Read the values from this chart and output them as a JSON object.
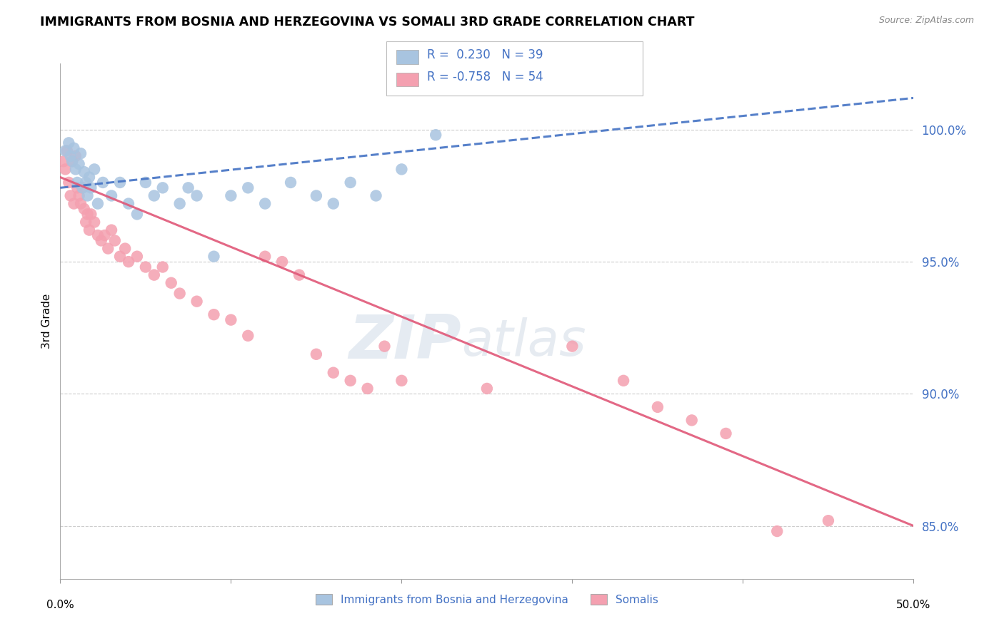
{
  "title": "IMMIGRANTS FROM BOSNIA AND HERZEGOVINA VS SOMALI 3RD GRADE CORRELATION CHART",
  "source": "Source: ZipAtlas.com",
  "ylabel": "3rd Grade",
  "y_ticks": [
    85.0,
    90.0,
    95.0,
    100.0
  ],
  "y_tick_labels": [
    "85.0%",
    "90.0%",
    "95.0%",
    "100.0%"
  ],
  "xlim": [
    0.0,
    50.0
  ],
  "ylim": [
    83.0,
    102.5
  ],
  "legend_bosnia_r": "0.230",
  "legend_bosnia_n": "39",
  "legend_somali_r": "-0.758",
  "legend_somali_n": "54",
  "bosnia_color": "#a8c4e0",
  "somali_color": "#f4a0b0",
  "bosnia_line_color": "#4472c4",
  "somali_line_color": "#e05878",
  "watermark_zip": "ZIP",
  "watermark_atlas": "atlas",
  "bosnia_x": [
    0.3,
    0.5,
    0.6,
    0.7,
    0.8,
    0.9,
    1.0,
    1.1,
    1.2,
    1.3,
    1.4,
    1.5,
    1.6,
    1.7,
    1.8,
    2.0,
    2.2,
    2.5,
    3.0,
    3.5,
    4.0,
    4.5,
    5.0,
    5.5,
    6.0,
    7.0,
    7.5,
    8.0,
    9.0,
    10.0,
    11.0,
    12.0,
    13.5,
    15.0,
    16.0,
    17.0,
    18.5,
    20.0,
    22.0
  ],
  "bosnia_y": [
    99.2,
    99.5,
    99.0,
    98.8,
    99.3,
    98.5,
    98.0,
    98.7,
    99.1,
    97.8,
    98.4,
    98.0,
    97.5,
    98.2,
    97.8,
    98.5,
    97.2,
    98.0,
    97.5,
    98.0,
    97.2,
    96.8,
    98.0,
    97.5,
    97.8,
    97.2,
    97.8,
    97.5,
    95.2,
    97.5,
    97.8,
    97.2,
    98.0,
    97.5,
    97.2,
    98.0,
    97.5,
    98.5,
    99.8
  ],
  "somali_x": [
    0.2,
    0.3,
    0.4,
    0.5,
    0.6,
    0.7,
    0.8,
    0.9,
    1.0,
    1.1,
    1.2,
    1.3,
    1.4,
    1.5,
    1.6,
    1.7,
    1.8,
    2.0,
    2.2,
    2.4,
    2.6,
    2.8,
    3.0,
    3.2,
    3.5,
    3.8,
    4.0,
    4.5,
    5.0,
    5.5,
    6.0,
    6.5,
    7.0,
    8.0,
    9.0,
    10.0,
    11.0,
    12.0,
    13.0,
    14.0,
    15.0,
    16.0,
    17.0,
    18.0,
    19.0,
    20.0,
    25.0,
    30.0,
    33.0,
    35.0,
    37.0,
    39.0,
    42.0,
    45.0
  ],
  "somali_y": [
    98.8,
    98.5,
    99.2,
    98.0,
    97.5,
    98.8,
    97.2,
    99.0,
    97.8,
    97.5,
    97.2,
    97.8,
    97.0,
    96.5,
    96.8,
    96.2,
    96.8,
    96.5,
    96.0,
    95.8,
    96.0,
    95.5,
    96.2,
    95.8,
    95.2,
    95.5,
    95.0,
    95.2,
    94.8,
    94.5,
    94.8,
    94.2,
    93.8,
    93.5,
    93.0,
    92.8,
    92.2,
    95.2,
    95.0,
    94.5,
    91.5,
    90.8,
    90.5,
    90.2,
    91.8,
    90.5,
    90.2,
    91.8,
    90.5,
    89.5,
    89.0,
    88.5,
    84.8,
    85.2
  ],
  "bosnia_line_x": [
    0,
    50
  ],
  "bosnia_line_y": [
    97.8,
    101.2
  ],
  "somali_line_x": [
    0,
    50
  ],
  "somali_line_y": [
    98.2,
    85.0
  ]
}
